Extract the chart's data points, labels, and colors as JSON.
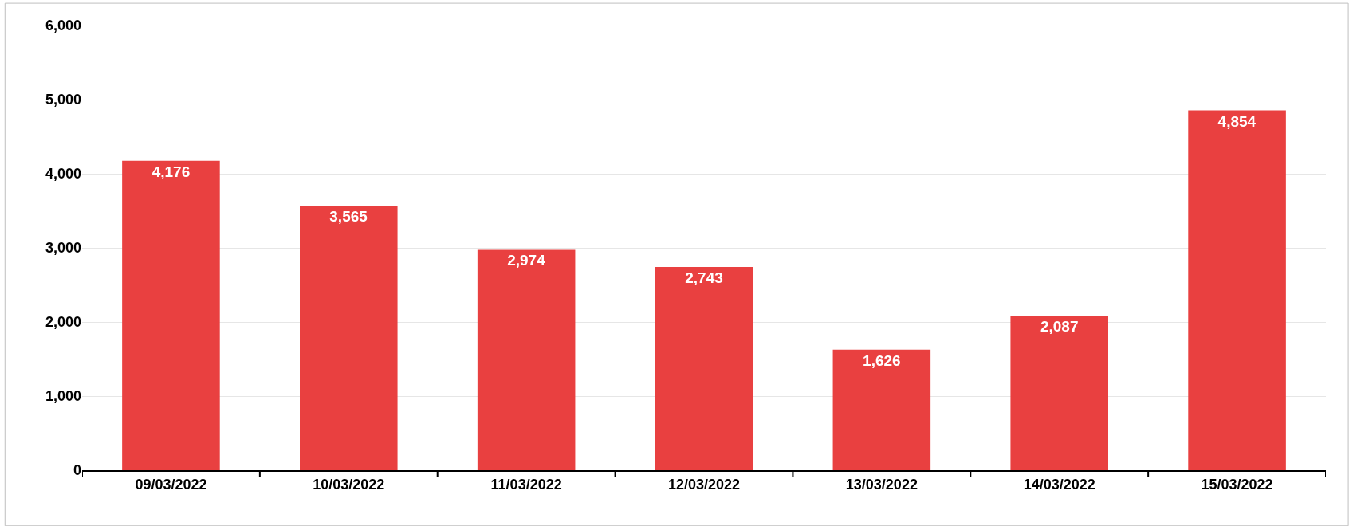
{
  "chart_data": {
    "type": "bar",
    "categories": [
      "09/03/2022",
      "10/03/2022",
      "11/03/2022",
      "12/03/2022",
      "13/03/2022",
      "14/03/2022",
      "15/03/2022"
    ],
    "values": [
      4176,
      3565,
      2974,
      2743,
      1626,
      2087,
      4854
    ],
    "color": "#e94040",
    "ylim": [
      0,
      6000
    ],
    "yticks": [
      0,
      {
        "value": 1000,
        "label": "1,000"
      },
      {
        "value": 2000,
        "label": "2,000"
      },
      {
        "value": 3000,
        "label": "3,000"
      },
      {
        "value": 4000,
        "label": "4,000"
      },
      {
        "value": 5000,
        "label": "5,000"
      },
      {
        "value": 6000,
        "label": "6,000"
      }
    ],
    "grid": "y",
    "value_labels": [
      "4,176",
      "3,565",
      "2,974",
      "2,743",
      "1,626",
      "2,087",
      "4,854"
    ]
  }
}
